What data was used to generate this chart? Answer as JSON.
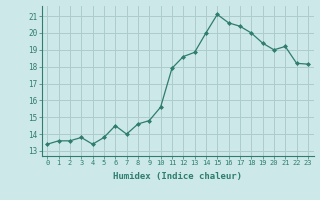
{
  "x": [
    0,
    1,
    2,
    3,
    4,
    5,
    6,
    7,
    8,
    9,
    10,
    11,
    12,
    13,
    14,
    15,
    16,
    17,
    18,
    19,
    20,
    21,
    22,
    23
  ],
  "y": [
    13.4,
    13.6,
    13.6,
    13.8,
    13.4,
    13.8,
    14.5,
    14.0,
    14.6,
    14.8,
    15.6,
    17.9,
    18.6,
    18.85,
    20.0,
    21.1,
    20.6,
    20.4,
    20.0,
    19.4,
    19.0,
    19.2,
    18.2,
    18.15
  ],
  "line_color": "#2e7d6e",
  "marker": "D",
  "marker_size": 2.0,
  "bg_color": "#cce8e8",
  "grid_color": "#aecccc",
  "xlabel": "Humidex (Indice chaleur)",
  "ylabel_ticks": [
    13,
    14,
    15,
    16,
    17,
    18,
    19,
    20,
    21
  ],
  "ylim": [
    12.7,
    21.6
  ],
  "xlim": [
    -0.5,
    23.5
  ],
  "title": ""
}
